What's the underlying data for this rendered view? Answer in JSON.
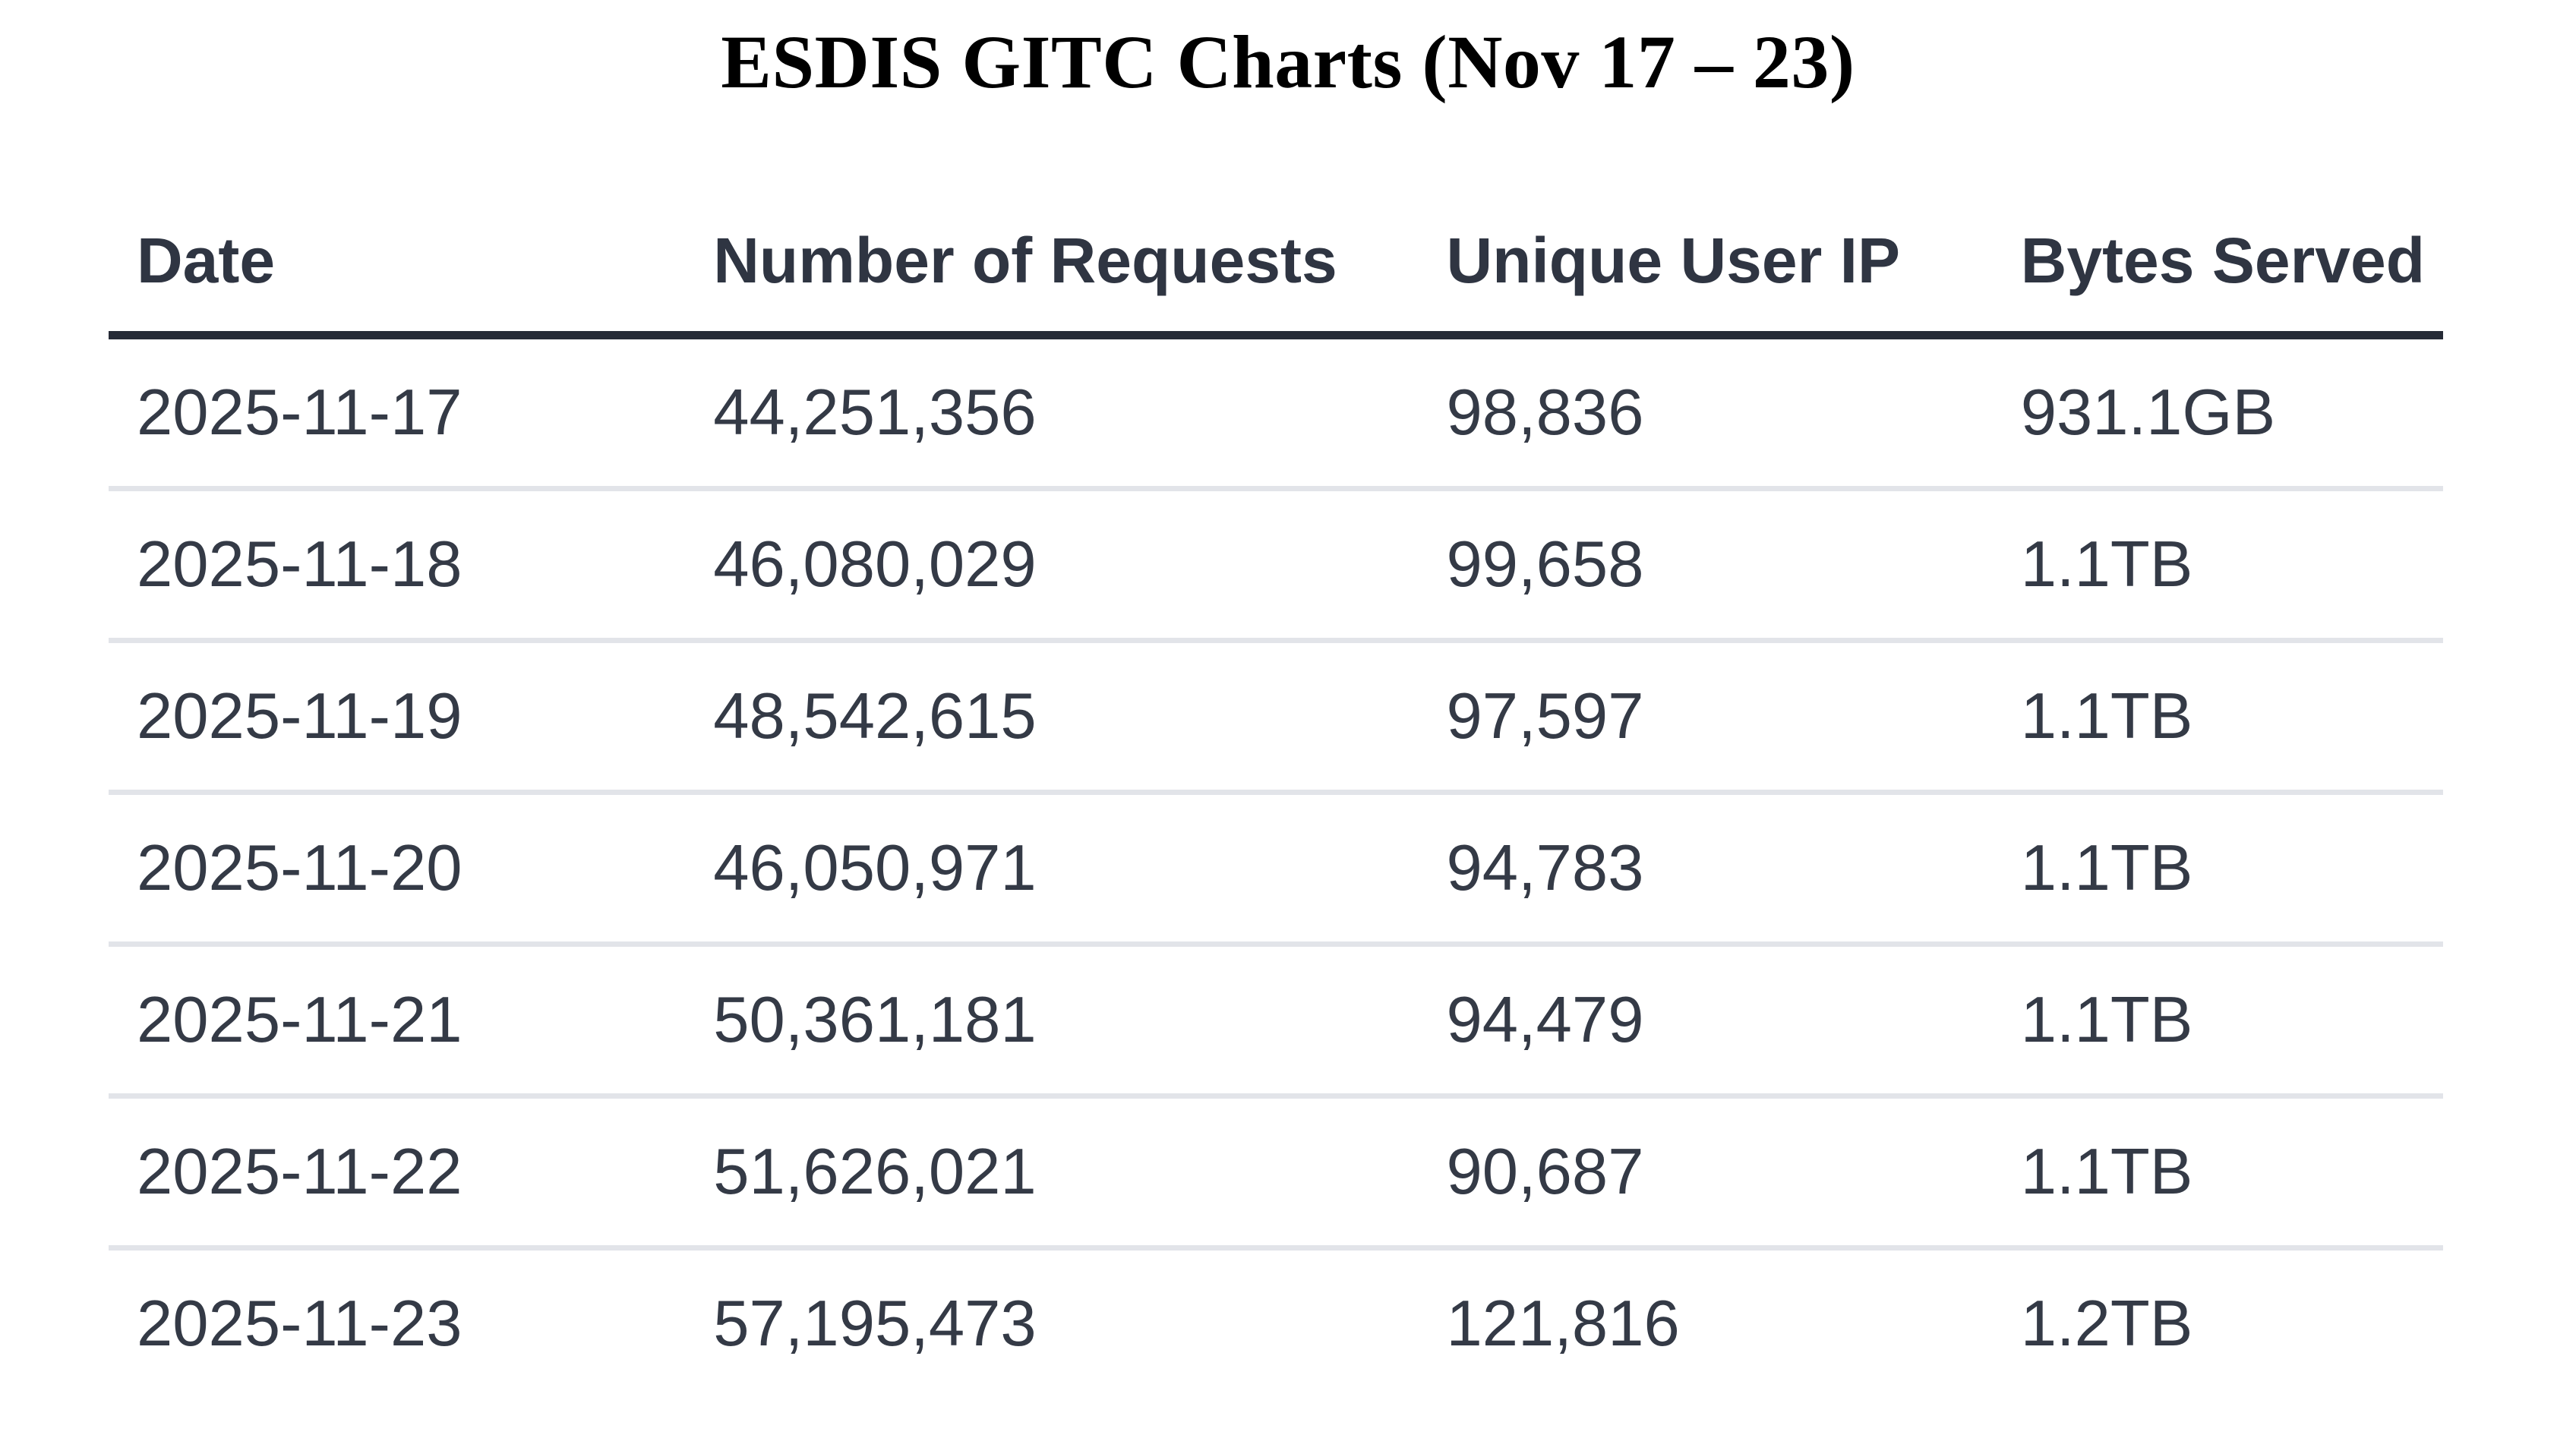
{
  "title": "ESDIS GITC Charts (Nov 17 – 23)",
  "table": {
    "columns": [
      "Date",
      "Number of Requests",
      "Unique User IP",
      "Bytes Served"
    ],
    "rows": [
      [
        "2025-11-17",
        "44,251,356",
        "98,836",
        "931.1GB"
      ],
      [
        "2025-11-18",
        "46,080,029",
        "99,658",
        "1.1TB"
      ],
      [
        "2025-11-19",
        "48,542,615",
        "97,597",
        "1.1TB"
      ],
      [
        "2025-11-20",
        "46,050,971",
        "94,783",
        "1.1TB"
      ],
      [
        "2025-11-21",
        "50,361,181",
        "94,479",
        "1.1TB"
      ],
      [
        "2025-11-22",
        "51,626,021",
        "90,687",
        "1.1TB"
      ],
      [
        "2025-11-23",
        "57,195,473",
        "121,816",
        "1.2TB"
      ]
    ]
  },
  "colors": {
    "title_text": "#000000",
    "header_text": "#2f3542",
    "body_text": "#343a46",
    "header_rule": "#262b37",
    "row_separator": "#e2e4e9",
    "background": "#ffffff"
  },
  "chart_data": {
    "type": "table",
    "title": "ESDIS GITC Charts (Nov 17 – 23)",
    "columns": [
      "Date",
      "Number of Requests",
      "Unique User IP",
      "Bytes Served"
    ],
    "rows": [
      [
        "2025-11-17",
        "44,251,356",
        "98,836",
        "931.1GB"
      ],
      [
        "2025-11-18",
        "46,080,029",
        "99,658",
        "1.1TB"
      ],
      [
        "2025-11-19",
        "48,542,615",
        "97,597",
        "1.1TB"
      ],
      [
        "2025-11-20",
        "46,050,971",
        "94,783",
        "1.1TB"
      ],
      [
        "2025-11-21",
        "50,361,181",
        "94,479",
        "1.1TB"
      ],
      [
        "2025-11-22",
        "51,626,021",
        "90,687",
        "1.1TB"
      ],
      [
        "2025-11-23",
        "57,195,473",
        "121,816",
        "1.2TB"
      ]
    ],
    "series": [
      {
        "name": "Number of Requests",
        "values": [
          44251356,
          46080029,
          48542615,
          46050971,
          50361181,
          51626021,
          57195473
        ]
      },
      {
        "name": "Unique User IP",
        "values": [
          98836,
          99658,
          97597,
          94783,
          94479,
          90687,
          121816
        ]
      },
      {
        "name": "Bytes Served",
        "values": [
          "931.1GB",
          "1.1TB",
          "1.1TB",
          "1.1TB",
          "1.1TB",
          "1.1TB",
          "1.2TB"
        ]
      }
    ],
    "categories": [
      "2025-11-17",
      "2025-11-18",
      "2025-11-19",
      "2025-11-20",
      "2025-11-21",
      "2025-11-22",
      "2025-11-23"
    ]
  }
}
